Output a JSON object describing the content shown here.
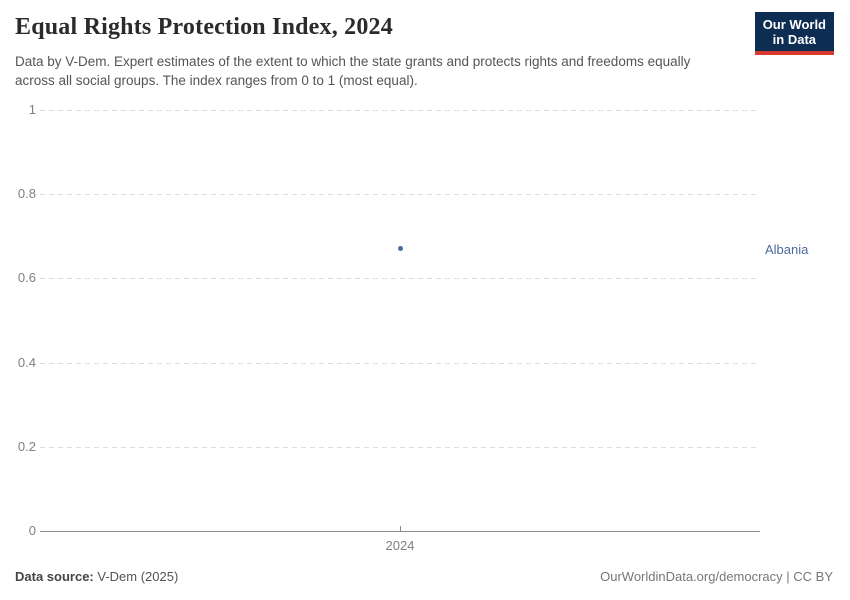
{
  "header": {
    "title": "Equal Rights Protection Index, 2024",
    "subtitle": "Data by V-Dem. Expert estimates of the extent to which the state grants and protects rights and freedoms equally across all social groups. The index ranges from 0 to 1 (most equal).",
    "logo": {
      "line1": "Our World",
      "line2": "in Data",
      "bg_color": "#0d2d52",
      "bar_color": "#d6392e"
    }
  },
  "chart_data": {
    "type": "scatter",
    "title": "Equal Rights Protection Index, 2024",
    "x": [
      2024
    ],
    "xtick_labels": [
      "2024"
    ],
    "series": [
      {
        "name": "Albania",
        "values": [
          0.67
        ],
        "color": "#4c6a9c"
      }
    ],
    "ylim": [
      0,
      1
    ],
    "yticks": [
      0,
      0.2,
      0.4,
      0.6,
      0.8,
      1
    ],
    "ytick_labels": [
      "0",
      "0.2",
      "0.4",
      "0.6",
      "0.8",
      "1"
    ],
    "xlabel": "",
    "ylabel": "",
    "grid": "horizontal-dashed",
    "legend_position": "right-entity-label",
    "gridline_color": "#dddddd",
    "axis_color": "#8e8e8e",
    "tick_label_color": "#808080"
  },
  "footer": {
    "source_label": "Data source:",
    "source_value": " V-Dem (2025)",
    "credit": "OurWorldinData.org/democracy | CC BY"
  }
}
